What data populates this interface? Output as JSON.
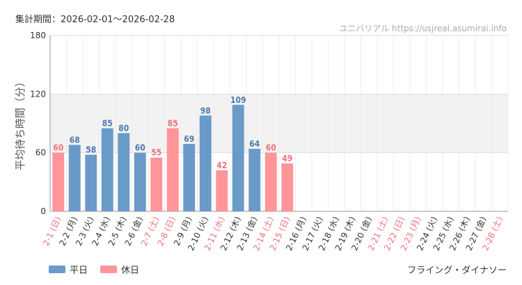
{
  "header": {
    "period": "集計期間：2026-02-01～2026-02-28",
    "credit": "ユニバリアル  https://usjreal.asumirai.info"
  },
  "footer": {
    "attraction": "フライング・ダイナソー"
  },
  "colors": {
    "weekday": "#6a9ac8",
    "holiday": "#ff9499",
    "weekday_text": "#4a7ab0",
    "holiday_text": "#f0707a",
    "band": "#f2f2f2"
  },
  "chart_data": {
    "type": "bar",
    "title": "",
    "ylabel": "平均待ち時間（分）",
    "xlabel": "",
    "ylim": [
      0,
      180
    ],
    "yticks": [
      "0",
      "60",
      "120",
      "180"
    ],
    "shaded_band": [
      60,
      120
    ],
    "legend": [
      {
        "name": "平日",
        "kind": "weekday"
      },
      {
        "name": "休日",
        "kind": "holiday"
      }
    ],
    "legend_placement": "bottom-left",
    "categories": [
      "2-1 (日)",
      "2-2 (月)",
      "2-3 (火)",
      "2-4 (水)",
      "2-5 (木)",
      "2-6 (金)",
      "2-7 (土)",
      "2-8 (日)",
      "2-9 (月)",
      "2-10 (火)",
      "2-11 (水)",
      "2-12 (木)",
      "2-13 (金)",
      "2-14 (土)",
      "2-15 (日)",
      "2-16 (月)",
      "2-17 (火)",
      "2-18 (水)",
      "2-19 (木)",
      "2-20 (金)",
      "2-21 (土)",
      "2-22 (日)",
      "2-23 (月)",
      "2-24 (火)",
      "2-25 (水)",
      "2-26 (木)",
      "2-27 (金)",
      "2-28 (土)"
    ],
    "values": [
      60,
      68,
      58,
      85,
      80,
      60,
      55,
      85,
      69,
      98,
      42,
      109,
      64,
      60,
      49,
      null,
      null,
      null,
      null,
      null,
      null,
      null,
      null,
      null,
      null,
      null,
      null,
      null
    ],
    "day_type": [
      "holiday",
      "weekday",
      "weekday",
      "weekday",
      "weekday",
      "weekday",
      "holiday",
      "holiday",
      "weekday",
      "weekday",
      "holiday",
      "weekday",
      "weekday",
      "holiday",
      "holiday",
      "weekday",
      "weekday",
      "weekday",
      "weekday",
      "weekday",
      "holiday",
      "holiday",
      "holiday",
      "weekday",
      "weekday",
      "weekday",
      "weekday",
      "holiday"
    ]
  }
}
